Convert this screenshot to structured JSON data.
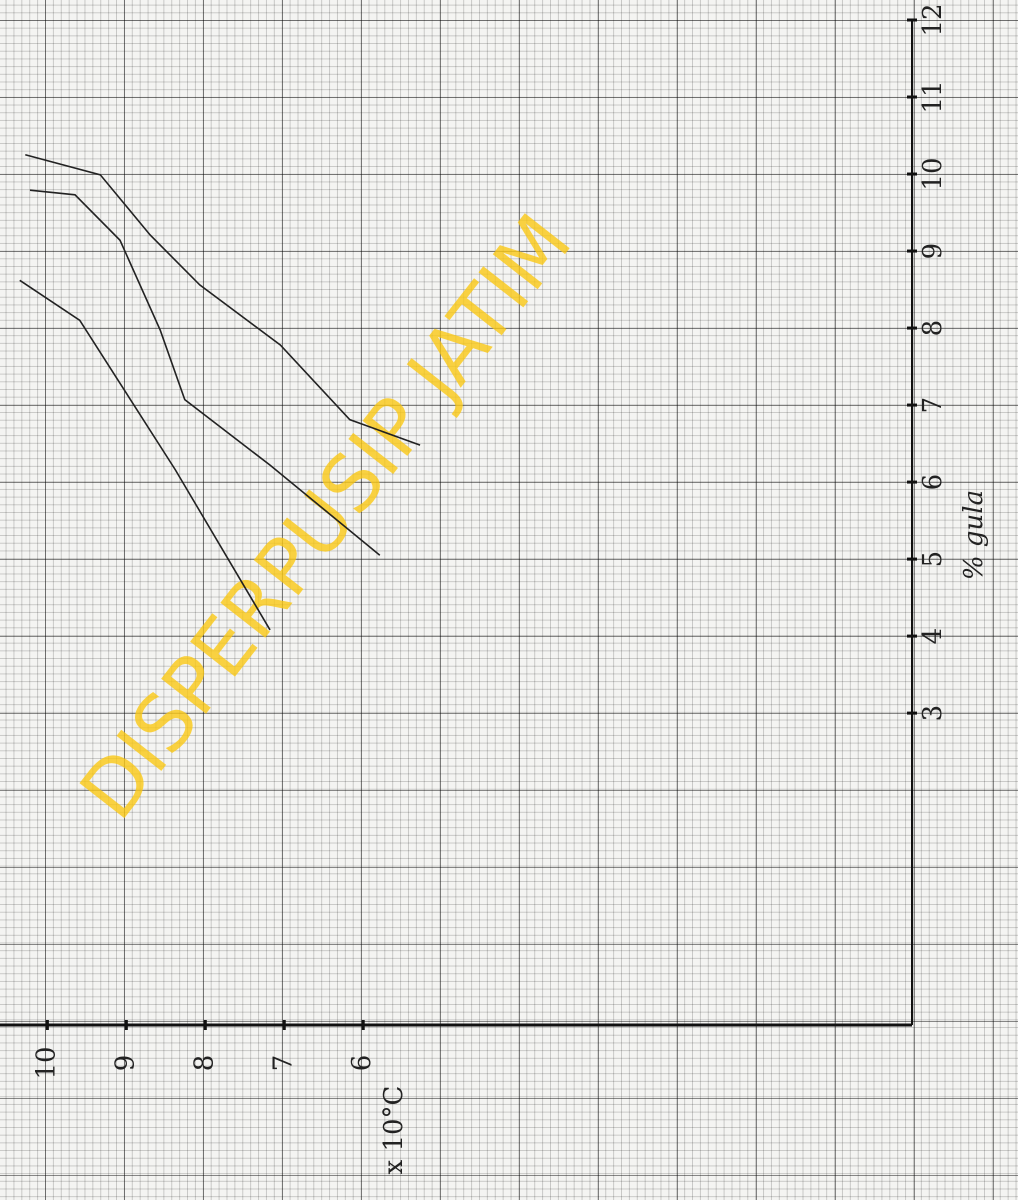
{
  "chart_data": {
    "type": "line",
    "x_label": "x 10°C",
    "y_label": "% gula",
    "watermark": "DISPERPUSIP JATIM",
    "xlim": [
      10.6,
      -0.95
    ],
    "xticks": [
      10,
      9,
      8,
      7,
      6
    ],
    "ylim": [
      -1.05,
      12
    ],
    "yticks": [
      3,
      4,
      5,
      6,
      7,
      8,
      9,
      10,
      11,
      12
    ],
    "reverse_x": true,
    "grid": true,
    "series": [
      {
        "color": "#222222",
        "x": [
          10.28,
          9.33,
          8.7,
          8.07,
          7.05,
          6.17,
          5.28
        ],
        "values": [
          10.25,
          9.99,
          9.21,
          8.56,
          7.78,
          6.81,
          6.48
        ]
      },
      {
        "color": "#222222",
        "x": [
          10.22,
          9.65,
          9.08,
          8.57,
          8.26,
          7.18,
          5.79
        ],
        "values": [
          9.79,
          9.73,
          9.14,
          7.97,
          7.07,
          6.22,
          5.05
        ]
      },
      {
        "color": "#222222",
        "x": [
          10.35,
          9.59,
          8.38,
          7.18
        ],
        "values": [
          8.62,
          8.1,
          6.16,
          4.08
        ]
      }
    ]
  }
}
